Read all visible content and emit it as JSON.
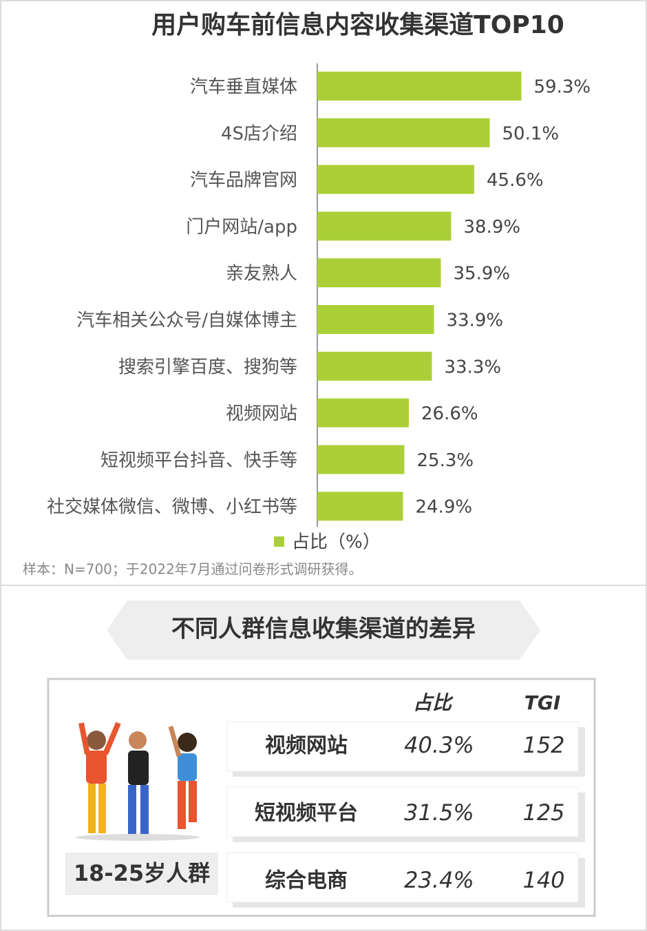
{
  "chart_data": {
    "type": "bar",
    "orientation": "horizontal",
    "title": "用户购车前信息内容收集渠道TOP10",
    "categories": [
      "汽车垂直媒体",
      "4S店介绍",
      "汽车品牌官网",
      "门户网站/app",
      "亲友熟人",
      "汽车相关公众号/自媒体博主",
      "搜索引擎百度、搜狗等",
      "视频网站",
      "短视频平台抖音、快手等",
      "社交媒体微信、微博、小红书等"
    ],
    "series": [
      {
        "name": "占比（%）",
        "color": "#abd037",
        "values": [
          59.3,
          50.1,
          45.6,
          38.9,
          35.9,
          33.9,
          33.3,
          26.6,
          25.3,
          24.9
        ],
        "value_labels": [
          "59.3%",
          "50.1%",
          "45.6%",
          "38.9%",
          "35.9%",
          "33.9%",
          "33.3%",
          "26.6%",
          "25.3%",
          "24.9%"
        ]
      }
    ],
    "xlim": [
      0,
      80
    ],
    "legend": "bottom",
    "note": "样本：N=700；于2022年7月通过问卷形式调研获得。"
  },
  "table": {
    "title": "不同人群信息收集渠道的差异",
    "headers": [
      "占比",
      "TGI"
    ],
    "group": "18-25岁人群",
    "rows": [
      [
        "视频网站",
        "40.3%",
        "152"
      ],
      [
        "短视频平台",
        "31.5%",
        "125"
      ],
      [
        "综合电商",
        "23.4%",
        "140"
      ]
    ]
  }
}
